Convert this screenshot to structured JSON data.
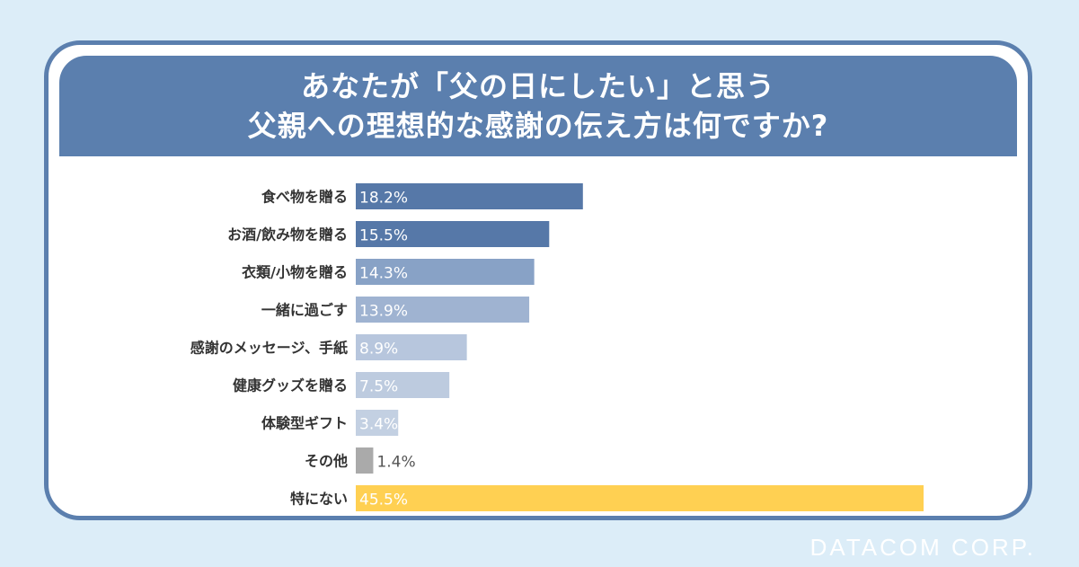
{
  "chart_data": {
    "type": "bar",
    "orientation": "horizontal",
    "title_lines": [
      "あなたが「父の日にしたい」と思う",
      "父親への理想的な感謝の伝え方は何ですか?"
    ],
    "categories": [
      "食べ物を贈る",
      "お酒/飲み物を贈る",
      "衣類/小物を贈る",
      "一緒に過ごす",
      "感謝のメッセージ、手紙",
      "健康グッズを贈る",
      "体験型ギフト",
      "その他",
      "特にない"
    ],
    "values": [
      18.2,
      15.5,
      14.3,
      13.9,
      8.9,
      7.5,
      3.4,
      1.4,
      45.5
    ],
    "value_labels": [
      "18.2%",
      "15.5%",
      "14.3%",
      "13.9%",
      "8.9%",
      "7.5%",
      "3.4%",
      "1.4%",
      "45.5%"
    ],
    "bar_colors": [
      "#5678a8",
      "#5678a8",
      "#88a2c6",
      "#9fb3d1",
      "#b7c6dd",
      "#bdcbdf",
      "#c3d0e2",
      "#aaaaaa",
      "#ffd052"
    ],
    "label_colors": [
      "#ffffff",
      "#ffffff",
      "#ffffff",
      "#ffffff",
      "#ffffff",
      "#ffffff",
      "#ffffff",
      "#555555",
      "#ffffff"
    ],
    "xlim": [
      0,
      45.5
    ],
    "grid": false,
    "legend": "none"
  },
  "brand": "DATACOM CORP."
}
